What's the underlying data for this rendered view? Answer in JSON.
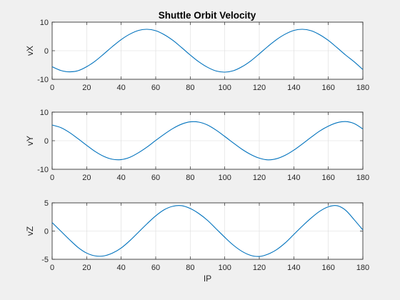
{
  "figure": {
    "title": "Shuttle Orbit Velocity",
    "background": "#f0f0f0",
    "line_color": "#0072bd"
  },
  "chart_data": [
    {
      "type": "line",
      "title": "Shuttle Orbit Velocity",
      "xlabel": "",
      "ylabel": "vX",
      "xlim": [
        0,
        180
      ],
      "ylim": [
        -10,
        10
      ],
      "xticks": [
        0,
        20,
        40,
        60,
        80,
        100,
        120,
        140,
        160,
        180
      ],
      "yticks": [
        -10,
        0,
        10
      ],
      "grid": true,
      "series": [
        {
          "x": [
            0,
            5,
            10,
            15,
            20,
            25,
            30,
            35,
            40,
            45,
            50,
            55,
            60,
            65,
            70,
            75,
            80,
            85,
            90,
            95,
            100,
            105,
            110,
            115,
            120,
            125,
            130,
            135,
            140,
            145,
            150,
            155,
            160,
            165,
            170,
            175,
            180
          ],
          "values": [
            -5.6,
            -6.9,
            -7.4,
            -7.0,
            -5.6,
            -3.6,
            -1.1,
            1.5,
            3.9,
            5.8,
            7.1,
            7.5,
            7.0,
            5.6,
            3.6,
            1.1,
            -1.5,
            -3.9,
            -5.8,
            -7.1,
            -7.5,
            -7.0,
            -5.6,
            -3.6,
            -1.1,
            1.5,
            3.9,
            5.8,
            7.1,
            7.5,
            7.0,
            5.6,
            3.6,
            1.1,
            -1.5,
            -3.9,
            -6.6
          ]
        }
      ]
    },
    {
      "type": "line",
      "xlabel": "",
      "ylabel": "vY",
      "xlim": [
        0,
        180
      ],
      "ylim": [
        -10,
        10
      ],
      "xticks": [
        0,
        20,
        40,
        60,
        80,
        100,
        120,
        140,
        160,
        180
      ],
      "yticks": [
        -10,
        0,
        10
      ],
      "grid": true,
      "series": [
        {
          "x": [
            0,
            5,
            10,
            15,
            20,
            25,
            30,
            35,
            40,
            45,
            50,
            55,
            60,
            65,
            70,
            75,
            80,
            85,
            90,
            95,
            100,
            105,
            110,
            115,
            120,
            125,
            130,
            135,
            140,
            145,
            150,
            155,
            160,
            165,
            170,
            175,
            180
          ],
          "values": [
            5.5,
            4.6,
            2.9,
            0.7,
            -1.6,
            -3.8,
            -5.5,
            -6.5,
            -6.6,
            -5.8,
            -4.2,
            -2.2,
            0.1,
            2.3,
            4.3,
            5.8,
            6.6,
            6.5,
            5.5,
            3.7,
            1.5,
            -0.8,
            -3.0,
            -4.8,
            -6.1,
            -6.7,
            -6.3,
            -5.1,
            -3.3,
            -1.1,
            1.2,
            3.4,
            5.1,
            6.3,
            6.7,
            6.0,
            4.1
          ]
        }
      ]
    },
    {
      "type": "line",
      "xlabel": "IP",
      "ylabel": "vZ",
      "xlim": [
        0,
        180
      ],
      "ylim": [
        -5,
        5
      ],
      "xticks": [
        0,
        20,
        40,
        60,
        80,
        100,
        120,
        140,
        160,
        180
      ],
      "yticks": [
        -5,
        0,
        5
      ],
      "grid": true,
      "series": [
        {
          "x": [
            0,
            5,
            10,
            15,
            20,
            25,
            30,
            35,
            40,
            45,
            50,
            55,
            60,
            65,
            70,
            75,
            80,
            85,
            90,
            95,
            100,
            105,
            110,
            115,
            120,
            125,
            130,
            135,
            140,
            145,
            150,
            155,
            160,
            165,
            170,
            175,
            180
          ],
          "values": [
            1.5,
            0.0,
            -1.5,
            -2.9,
            -3.9,
            -4.4,
            -4.4,
            -3.9,
            -3.0,
            -1.7,
            -0.2,
            1.3,
            2.7,
            3.8,
            4.4,
            4.5,
            4.0,
            3.1,
            1.9,
            0.4,
            -1.1,
            -2.5,
            -3.6,
            -4.3,
            -4.5,
            -4.1,
            -3.3,
            -2.1,
            -0.6,
            0.9,
            2.3,
            3.5,
            4.3,
            4.5,
            3.7,
            2.0,
            0.2
          ]
        }
      ]
    }
  ]
}
